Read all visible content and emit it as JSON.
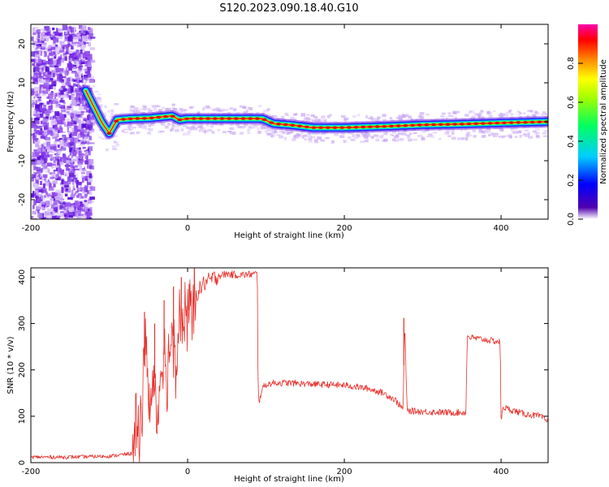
{
  "title": "S120.2023.090.18.40.G10",
  "chart_data": [
    {
      "type": "heatmap",
      "xlabel": "Height of straight line (km)",
      "ylabel": "Frequency (Hz)",
      "xlim": [
        -200,
        460
      ],
      "ylim": [
        -25,
        25
      ],
      "xticks": [
        -200,
        0,
        200,
        400
      ],
      "yticks": [
        -20,
        -10,
        0,
        10,
        20
      ],
      "colorbar": {
        "label": "Normalized spectral amplitude",
        "range": [
          0,
          1
        ],
        "ticks": [
          "0.0",
          "0.2",
          "0.4",
          "0.6",
          "0.8"
        ]
      },
      "ridge": {
        "x": [
          -130,
          -120,
          -110,
          -100,
          -90,
          -70,
          -50,
          -20,
          -10,
          0,
          50,
          95,
          110,
          130,
          160,
          200,
          250,
          300,
          350,
          400,
          460
        ],
        "y": [
          8,
          4,
          0,
          -3,
          0.5,
          0.8,
          0.9,
          1.5,
          0.5,
          0.8,
          0.8,
          0.8,
          -0.5,
          -0.8,
          -1.5,
          -1.5,
          -1.2,
          -0.8,
          -0.6,
          -0.3,
          0
        ]
      }
    },
    {
      "type": "line",
      "xlabel": "Height of straight line (km)",
      "ylabel": "SNR (10 * v/v)",
      "xlim": [
        -200,
        460
      ],
      "ylim": [
        0,
        420
      ],
      "xticks": [
        -200,
        0,
        200,
        400
      ],
      "yticks": [
        0,
        100,
        200,
        300,
        400
      ],
      "color": "#e8322c",
      "series": [
        {
          "x": [
            -200,
            -150,
            -100,
            -70,
            -62,
            -57,
            -53,
            -48,
            -43,
            -38,
            -32,
            -26,
            -20,
            -14,
            -10,
            -5,
            0,
            5,
            10,
            20,
            30,
            40,
            50,
            60,
            70,
            80,
            89,
            90,
            92,
            95,
            100,
            110,
            130,
            150,
            180,
            200,
            230,
            250,
            265,
            275,
            277,
            280,
            300,
            330,
            355,
            357,
            360,
            380,
            399,
            400,
            402,
            410,
            430,
            450,
            460
          ],
          "y": [
            12,
            12,
            14,
            20,
            80,
            140,
            280,
            90,
            200,
            110,
            260,
            180,
            300,
            220,
            340,
            280,
            320,
            340,
            360,
            385,
            395,
            403,
            407,
            405,
            405,
            406,
            407,
            140,
            135,
            160,
            168,
            172,
            172,
            170,
            168,
            167,
            160,
            150,
            135,
            115,
            305,
            112,
            110,
            108,
            108,
            275,
            270,
            265,
            260,
            75,
            120,
            115,
            105,
            100,
            88
          ]
        }
      ]
    }
  ]
}
